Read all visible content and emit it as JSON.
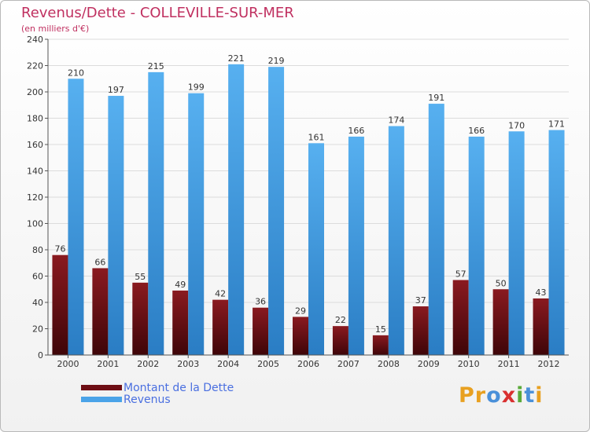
{
  "chart_data": {
    "type": "bar",
    "title": "Revenus/Dette - COLLEVILLE-SUR-MER",
    "subtitle": "(en milliers d'€)",
    "categories": [
      "2000",
      "2001",
      "2002",
      "2003",
      "2004",
      "2005",
      "2006",
      "2007",
      "2008",
      "2009",
      "2010",
      "2011",
      "2012"
    ],
    "series": [
      {
        "name": "Montant de la Dette",
        "color": "#6e0e14",
        "values": [
          76,
          66,
          55,
          49,
          42,
          36,
          29,
          22,
          15,
          37,
          57,
          50,
          43
        ]
      },
      {
        "name": "Revenus",
        "color": "#4aa3e8",
        "values": [
          210,
          197,
          215,
          199,
          221,
          219,
          161,
          166,
          174,
          191,
          166,
          170,
          171
        ]
      }
    ],
    "ylim": [
      0,
      240
    ],
    "yticks": [
      0,
      20,
      40,
      60,
      80,
      100,
      120,
      140,
      160,
      180,
      200,
      220,
      240
    ],
    "grid": true,
    "legend_position": "bottom-left"
  },
  "logo": {
    "letters": [
      {
        "ch": "P",
        "color": "#e8a020"
      },
      {
        "ch": "r",
        "color": "#e8a020"
      },
      {
        "ch": "o",
        "color": "#4a90d9"
      },
      {
        "ch": "x",
        "color": "#d93030"
      },
      {
        "ch": "i",
        "color": "#5aaa3a"
      },
      {
        "ch": "t",
        "color": "#4a90d9"
      },
      {
        "ch": "i",
        "color": "#e8a020"
      }
    ]
  }
}
